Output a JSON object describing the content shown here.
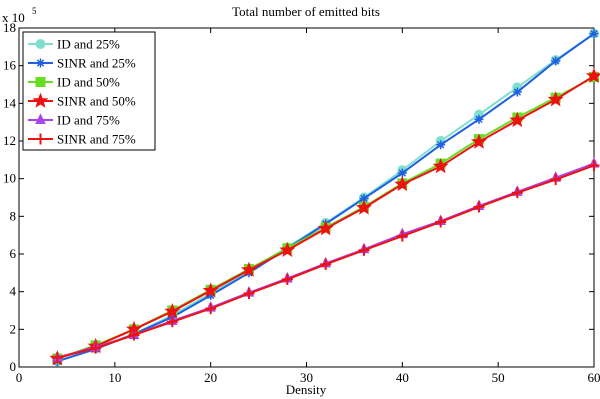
{
  "chart_data": {
    "type": "line",
    "title": "Total number of emitted bits",
    "xlabel": "Density",
    "ylabel": "",
    "y_multiplier_label": "x 10",
    "y_multiplier_exponent": "5",
    "xlim": [
      0,
      60
    ],
    "ylim": [
      0,
      18
    ],
    "xticks": [
      0,
      10,
      20,
      30,
      40,
      50,
      60
    ],
    "yticks": [
      0,
      2,
      4,
      6,
      8,
      10,
      12,
      14,
      16,
      18
    ],
    "grid": false,
    "legend_position": "top-left",
    "x": [
      4,
      8,
      12,
      16,
      20,
      24,
      28,
      32,
      36,
      40,
      44,
      48,
      52,
      56,
      60
    ],
    "series": [
      {
        "name": "ID and 25%",
        "color": "#7fe0d0",
        "marker": "circle",
        "values": [
          0.3,
          1.0,
          1.75,
          2.75,
          3.9,
          5.1,
          6.35,
          7.65,
          9.0,
          10.45,
          12.0,
          13.4,
          14.85,
          16.3,
          17.7
        ]
      },
      {
        "name": "SINR and 25%",
        "color": "#1f5fe0",
        "marker": "star",
        "values": [
          0.3,
          0.95,
          1.75,
          2.65,
          3.8,
          5.0,
          6.3,
          7.6,
          8.95,
          10.3,
          11.8,
          13.15,
          14.6,
          16.25,
          17.7
        ]
      },
      {
        "name": "ID and 50%",
        "color": "#66dd22",
        "marker": "square",
        "values": [
          0.45,
          1.15,
          2.0,
          3.0,
          4.1,
          5.2,
          6.3,
          7.4,
          8.5,
          9.75,
          10.8,
          12.1,
          13.25,
          14.3,
          15.4
        ]
      },
      {
        "name": "SINR and 50%",
        "color": "#ee1111",
        "marker": "pentagram",
        "values": [
          0.45,
          1.1,
          2.0,
          2.95,
          4.05,
          5.15,
          6.2,
          7.35,
          8.45,
          9.7,
          10.65,
          11.95,
          13.1,
          14.2,
          15.45
        ]
      },
      {
        "name": "ID and 75%",
        "color": "#aa44ee",
        "marker": "triangle",
        "values": [
          0.5,
          1.05,
          1.7,
          2.45,
          3.15,
          3.95,
          4.7,
          5.5,
          6.25,
          7.05,
          7.75,
          8.55,
          9.3,
          10.05,
          10.8
        ]
      },
      {
        "name": "SINR and 75%",
        "color": "#ee1111",
        "marker": "plus",
        "values": [
          0.5,
          1.0,
          1.7,
          2.4,
          3.1,
          3.9,
          4.65,
          5.45,
          6.2,
          6.95,
          7.7,
          8.5,
          9.25,
          9.95,
          10.7
        ]
      }
    ]
  }
}
